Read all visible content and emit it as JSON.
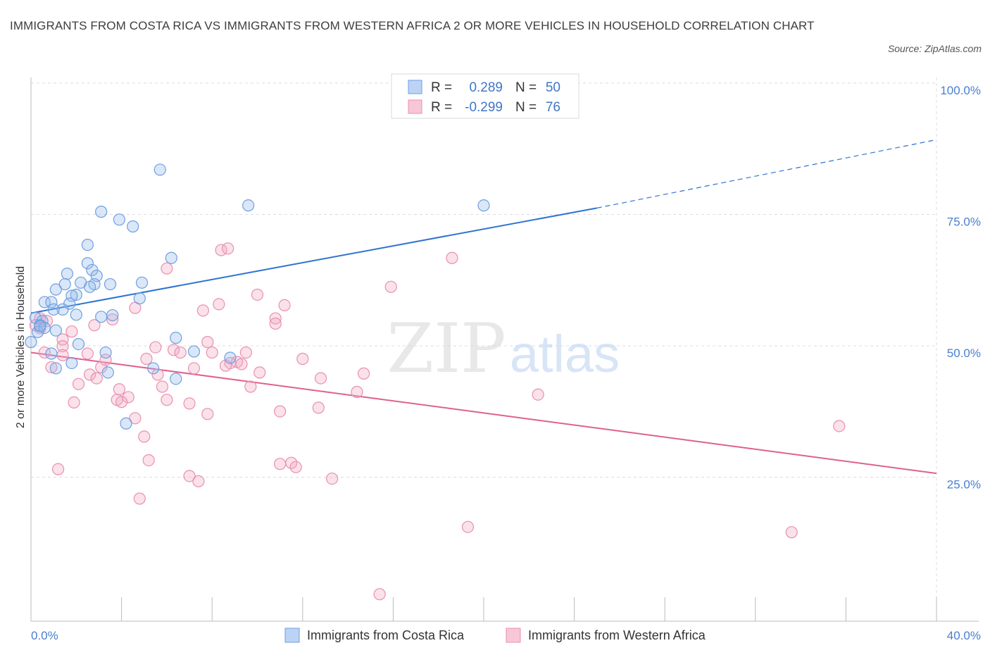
{
  "title": "IMMIGRANTS FROM COSTA RICA VS IMMIGRANTS FROM WESTERN AFRICA 2 OR MORE VEHICLES IN HOUSEHOLD CORRELATION CHART",
  "source": "Source: ZipAtlas.com",
  "watermark": {
    "zip": "ZIP",
    "atlas": "atlas"
  },
  "colors": {
    "blue": "#6f9fe0",
    "blue_fill": "rgba(150,185,235,0.35)",
    "blue_line": "#2f74d0",
    "pink": "#e890b0",
    "pink_fill": "rgba(240,170,195,0.35)",
    "pink_line": "#e06090",
    "tick_text": "#4a7fd0"
  },
  "legend": {
    "rows": [
      {
        "r_label": "R =",
        "r_value": "0.289",
        "n_label": "N =",
        "n_value": "50"
      },
      {
        "r_label": "R =",
        "r_value": "-0.299",
        "n_label": "N =",
        "n_value": "76"
      }
    ]
  },
  "bottom_legend": [
    "Immigrants from Costa Rica",
    "Immigrants from Western Africa"
  ],
  "chart_data": {
    "type": "scatter",
    "title": "IMMIGRANTS FROM COSTA RICA VS IMMIGRANTS FROM WESTERN AFRICA 2 OR MORE VEHICLES IN HOUSEHOLD CORRELATION CHART",
    "xlabel": "",
    "ylabel": "2 or more Vehicles in Household",
    "xlim": [
      0,
      40
    ],
    "ylim": [
      0,
      100
    ],
    "x_tick_labels": [
      "0.0%",
      "40.0%"
    ],
    "y_tick_labels": [
      "100.0%",
      "75.0%",
      "50.0%",
      "25.0%"
    ],
    "y_ticks": [
      100,
      75,
      50,
      25
    ],
    "grid": true,
    "series": [
      {
        "name": "Immigrants from Costa Rica",
        "points": [
          [
            5.7,
            85.8
          ],
          [
            3.1,
            77.8
          ],
          [
            3.9,
            76.3
          ],
          [
            4.5,
            75.0
          ],
          [
            9.6,
            79.0
          ],
          [
            20.0,
            79.0
          ],
          [
            2.5,
            71.5
          ],
          [
            6.2,
            69.0
          ],
          [
            2.5,
            68.0
          ],
          [
            2.7,
            66.7
          ],
          [
            1.6,
            66.0
          ],
          [
            2.9,
            65.6
          ],
          [
            4.9,
            64.3
          ],
          [
            2.2,
            64.3
          ],
          [
            2.8,
            64.0
          ],
          [
            3.5,
            64.0
          ],
          [
            1.5,
            64.0
          ],
          [
            2.6,
            63.5
          ],
          [
            1.1,
            63.0
          ],
          [
            2.0,
            62.0
          ],
          [
            1.8,
            61.8
          ],
          [
            4.8,
            61.3
          ],
          [
            0.6,
            60.6
          ],
          [
            0.9,
            60.6
          ],
          [
            1.7,
            60.3
          ],
          [
            1.4,
            59.2
          ],
          [
            1.0,
            59.2
          ],
          [
            2.0,
            58.2
          ],
          [
            3.1,
            57.8
          ],
          [
            3.6,
            58.1
          ],
          [
            0.2,
            57.6
          ],
          [
            0.5,
            57.0
          ],
          [
            0.4,
            56.2
          ],
          [
            1.1,
            55.2
          ],
          [
            0.3,
            54.9
          ],
          [
            0.6,
            55.7
          ],
          [
            6.4,
            53.8
          ],
          [
            0.0,
            53.0
          ],
          [
            2.1,
            52.6
          ],
          [
            3.3,
            51.0
          ],
          [
            7.2,
            51.2
          ],
          [
            0.9,
            50.8
          ],
          [
            8.8,
            50.0
          ],
          [
            1.8,
            49.0
          ],
          [
            5.4,
            48.0
          ],
          [
            1.1,
            48.0
          ],
          [
            3.4,
            47.2
          ],
          [
            6.4,
            46.0
          ],
          [
            4.2,
            37.5
          ],
          [
            0.4,
            56.0
          ]
        ]
      },
      {
        "name": "Immigrants from Western Africa",
        "points": [
          [
            8.4,
            70.5
          ],
          [
            8.7,
            70.8
          ],
          [
            18.6,
            69.0
          ],
          [
            6.0,
            67.0
          ],
          [
            15.9,
            63.5
          ],
          [
            10.0,
            62.0
          ],
          [
            11.2,
            60.0
          ],
          [
            8.3,
            60.2
          ],
          [
            4.6,
            59.5
          ],
          [
            7.6,
            59.0
          ],
          [
            10.8,
            57.5
          ],
          [
            3.6,
            57.3
          ],
          [
            10.8,
            56.5
          ],
          [
            0.4,
            57.5
          ],
          [
            0.7,
            57.0
          ],
          [
            0.2,
            56.2
          ],
          [
            0.4,
            55.6
          ],
          [
            2.8,
            56.2
          ],
          [
            1.8,
            55.0
          ],
          [
            1.4,
            53.5
          ],
          [
            7.8,
            53.0
          ],
          [
            5.5,
            52.0
          ],
          [
            1.4,
            52.2
          ],
          [
            6.3,
            51.5
          ],
          [
            0.6,
            51.0
          ],
          [
            6.6,
            51.0
          ],
          [
            8.0,
            51.0
          ],
          [
            2.5,
            50.8
          ],
          [
            9.5,
            51.0
          ],
          [
            1.4,
            50.5
          ],
          [
            5.1,
            49.8
          ],
          [
            12.0,
            49.8
          ],
          [
            3.3,
            49.6
          ],
          [
            9.1,
            49.2
          ],
          [
            8.8,
            49.0
          ],
          [
            9.3,
            48.8
          ],
          [
            8.6,
            48.5
          ],
          [
            0.9,
            48.2
          ],
          [
            3.1,
            48.2
          ],
          [
            7.2,
            48.0
          ],
          [
            10.1,
            47.2
          ],
          [
            14.7,
            47.0
          ],
          [
            5.6,
            46.8
          ],
          [
            2.6,
            46.8
          ],
          [
            12.8,
            46.1
          ],
          [
            2.9,
            46.1
          ],
          [
            2.1,
            45.0
          ],
          [
            5.8,
            44.5
          ],
          [
            9.7,
            44.5
          ],
          [
            3.9,
            44.0
          ],
          [
            14.4,
            43.5
          ],
          [
            22.4,
            43.0
          ],
          [
            4.3,
            42.5
          ],
          [
            6.0,
            42.0
          ],
          [
            3.8,
            42.0
          ],
          [
            4.0,
            41.6
          ],
          [
            1.9,
            41.5
          ],
          [
            7.0,
            41.3
          ],
          [
            12.7,
            40.5
          ],
          [
            11.0,
            39.8
          ],
          [
            7.8,
            39.3
          ],
          [
            4.6,
            38.5
          ],
          [
            35.7,
            37.0
          ],
          [
            5.0,
            35.0
          ],
          [
            5.2,
            30.5
          ],
          [
            11.5,
            30.0
          ],
          [
            11.0,
            29.8
          ],
          [
            11.7,
            29.2
          ],
          [
            1.2,
            28.8
          ],
          [
            7.0,
            27.5
          ],
          [
            13.3,
            27.0
          ],
          [
            7.4,
            26.5
          ],
          [
            4.8,
            23.2
          ],
          [
            19.3,
            17.8
          ],
          [
            33.6,
            16.8
          ],
          [
            15.4,
            5.0
          ]
        ]
      }
    ],
    "trend_lines": [
      {
        "name": "Immigrants from Costa Rica",
        "x": [
          0,
          25
        ],
        "y": [
          58.5,
          78.5
        ],
        "dashed_extension_x": [
          25,
          40
        ],
        "dashed_extension_y": [
          78.5,
          91.5
        ]
      },
      {
        "name": "Immigrants from Western Africa",
        "x": [
          0,
          40
        ],
        "y": [
          51.0,
          28.0
        ]
      }
    ]
  }
}
